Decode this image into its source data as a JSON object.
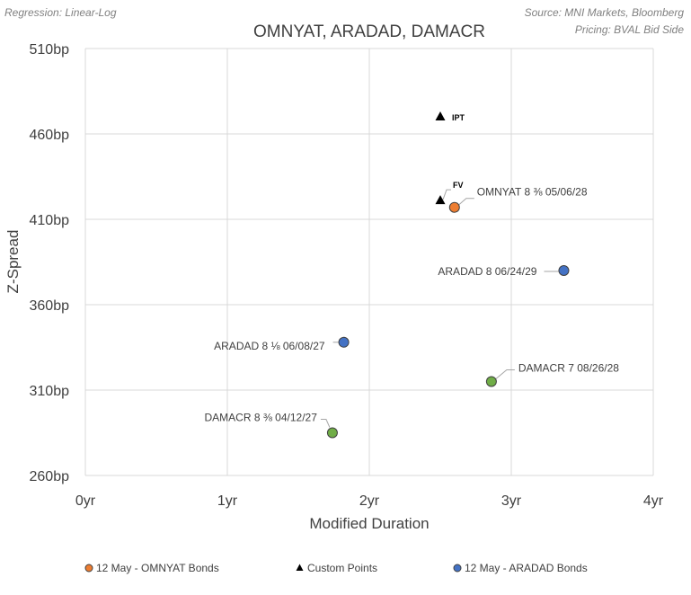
{
  "header": {
    "regression_note": "Regression: Linear-Log",
    "source_note": "Source: MNI Markets, Bloomberg",
    "pricing_note": "Pricing: BVAL Bid Side"
  },
  "chart_data": {
    "type": "scatter",
    "title": "OMNYAT, ARADAD, DAMACR",
    "xlabel": "Modified Duration",
    "ylabel": "Z-Spread",
    "xlim": [
      0,
      4
    ],
    "ylim": [
      260,
      510
    ],
    "x_ticks": [
      "0yr",
      "1yr",
      "2yr",
      "3yr",
      "4yr"
    ],
    "y_ticks": [
      "510bp",
      "460bp",
      "410bp",
      "360bp",
      "310bp",
      "260bp"
    ],
    "grid": true,
    "legend_position": "bottom",
    "colors": {
      "omnyat": "#ED7D31",
      "aradad": "#4472C4",
      "damacr": "#70AD47",
      "custom": "#000000"
    },
    "series": [
      {
        "name": "12 May - OMNYAT Bonds",
        "key": "omnyat",
        "marker": "circle",
        "points": [
          {
            "x": 2.6,
            "y": 417,
            "label": "OMNYAT 8 ⅜ 05/06/28"
          }
        ]
      },
      {
        "name": "Custom Points",
        "key": "custom",
        "marker": "triangle",
        "points": [
          {
            "x": 2.5,
            "y": 470,
            "label": "IPT"
          },
          {
            "x": 2.5,
            "y": 421,
            "label": "FV"
          }
        ]
      },
      {
        "name": "12 May - ARADAD Bonds",
        "key": "aradad",
        "marker": "circle",
        "points": [
          {
            "x": 3.37,
            "y": 380,
            "label": "ARADAD 8 06/24/29"
          },
          {
            "x": 1.82,
            "y": 338,
            "label": "ARADAD 8 ⅛ 06/08/27"
          }
        ]
      },
      {
        "name": "DAMACR",
        "key": "damacr",
        "marker": "circle",
        "points": [
          {
            "x": 2.86,
            "y": 315,
            "label": "DAMACR 7 08/26/28"
          },
          {
            "x": 1.74,
            "y": 285,
            "label": "DAMACR 8 ⅜ 04/12/27"
          }
        ]
      }
    ],
    "legend": [
      "12 May - OMNYAT Bonds",
      "Custom Points",
      "12 May - ARADAD Bonds"
    ]
  }
}
